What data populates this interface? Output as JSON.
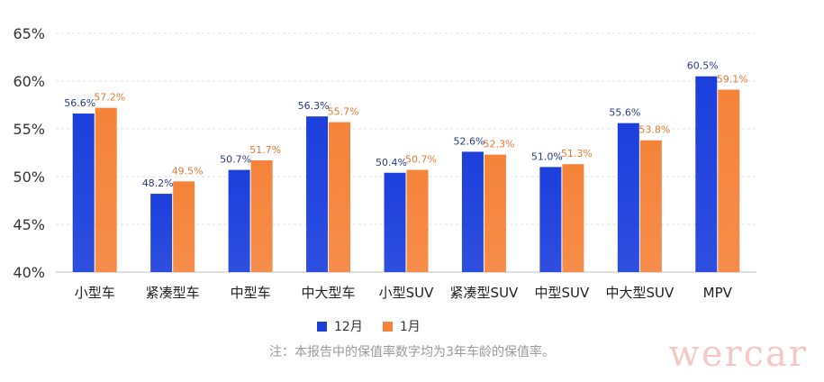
{
  "chart_data": {
    "type": "bar",
    "categories": [
      "小型车",
      "紧凑型车",
      "中型车",
      "中大型车",
      "小型SUV",
      "紧凑型SUV",
      "中型SUV",
      "中大型SUV",
      "MPV"
    ],
    "series": [
      {
        "name": "12月",
        "color": "#1c3fdc",
        "values": [
          56.6,
          48.2,
          50.7,
          56.3,
          50.4,
          52.6,
          51.0,
          55.6,
          60.5
        ],
        "labels": [
          "56.6%",
          "48.2%",
          "50.7%",
          "56.3%",
          "50.4%",
          "52.6%",
          "51.0%",
          "55.6%",
          "60.5%"
        ]
      },
      {
        "name": "1月",
        "color": "#f5833a",
        "values": [
          57.2,
          49.5,
          51.7,
          55.7,
          50.7,
          52.3,
          51.3,
          53.8,
          59.1
        ],
        "labels": [
          "57.2%",
          "49.5%",
          "51.7%",
          "55.7%",
          "50.7%",
          "52.3%",
          "51.3%",
          "53.8%",
          "59.1%"
        ]
      }
    ],
    "yticks": [
      "40%",
      "45%",
      "50%",
      "55%",
      "60%",
      "65%"
    ],
    "ytick_values": [
      40,
      45,
      50,
      55,
      60,
      65
    ],
    "ylim": [
      40,
      65
    ],
    "grid": true,
    "legend_position": "bottom"
  },
  "note": "注：本报告中的保值率数字均为3年车龄的保值率。",
  "watermark": "wercar"
}
